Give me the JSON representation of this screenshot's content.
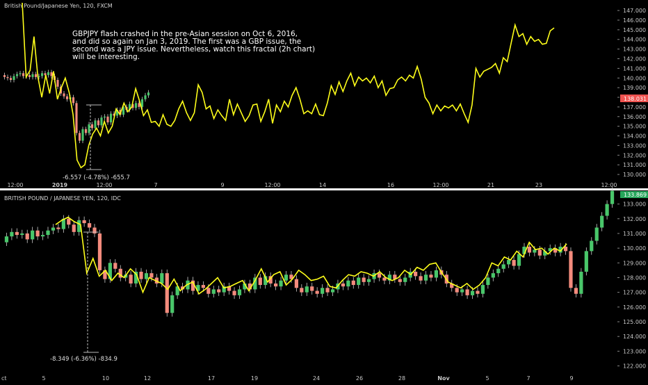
{
  "colors": {
    "background": "#000000",
    "yellow_line": "#ffff1a",
    "candle_up": "#49c66a",
    "candle_down": "#f48b7d",
    "wick": "#cfcfcf",
    "axis_text": "#c8c8c8",
    "price_badge": "#ef5350",
    "price_badge_green": "#26a65b",
    "divider": "#ffffff"
  },
  "chart_data": [
    {
      "type": "line",
      "title": "British Pound/Japanese Yen, 120, FXCM",
      "annotation": [
        "GBPJPY flash crashed in the pre-Asian session on Oct 6, 2016,",
        "and did so again on Jan 3, 2019. The first was a GBP issue, the",
        "second was a JPY issue. Nevertheless, watch this fractal (2h chart)",
        "will be interesting."
      ],
      "measurement_label": "-6.557 (-4.78%) -655.7",
      "price_badge": "138.031",
      "y_ticks": [
        "147.000",
        "146.000",
        "145.000",
        "144.000",
        "143.000",
        "142.000",
        "141.000",
        "140.000",
        "139.000",
        "138.000",
        "137.000",
        "136.000",
        "135.000",
        "134.000",
        "133.000",
        "132.000",
        "131.000",
        "130.000"
      ],
      "x_ticks": [
        "12:00",
        "2019",
        "12:00",
        "7",
        "9",
        "12:00",
        "14",
        "16",
        "12:00",
        "21",
        "23",
        "12:00"
      ],
      "ylim": [
        129.5,
        147.8
      ],
      "series": [
        {
          "type": "line",
          "color": "#ffff1a",
          "values": [
            148.5,
            140.1,
            140.8,
            144.3,
            140.1,
            138.0,
            140.3,
            138.4,
            140.7,
            137.8,
            139.0,
            140.0,
            138.5,
            136.2,
            131.5,
            130.7,
            131.0,
            133.0,
            134.2,
            134.8,
            134.0,
            135.5,
            134.3,
            135.0,
            136.8,
            136.2,
            137.4,
            136.5,
            137.0,
            138.9,
            137.6,
            136.1,
            136.7,
            135.4,
            135.5,
            135.0,
            136.2,
            135.2,
            135.0,
            135.6,
            136.8,
            137.6,
            136.4,
            135.6,
            136.4,
            139.3,
            138.5,
            136.8,
            137.1,
            135.8,
            136.7,
            136.1,
            135.6,
            137.8,
            136.2,
            137.3,
            136.4,
            135.5,
            136.1,
            137.2,
            137.3,
            135.5,
            136.5,
            137.8,
            135.3,
            137.2,
            136.5,
            137.6,
            137.0,
            138.2,
            139.0,
            137.8,
            136.3,
            136.6,
            136.3,
            137.3,
            136.2,
            136.1,
            137.4,
            139.2,
            138.3,
            139.6,
            138.6,
            139.7,
            140.5,
            139.2,
            140.1,
            139.7,
            140.0,
            139.5,
            140.2,
            139.0,
            139.7,
            138.2,
            138.9,
            139.0,
            139.8,
            140.1,
            139.7,
            140.3,
            140.0,
            141.2,
            139.9,
            138.0,
            137.4,
            136.3,
            137.2,
            136.6,
            137.1,
            136.9,
            137.2,
            136.6,
            137.3,
            136.3,
            135.4,
            137.2,
            141.0,
            140.1,
            140.7,
            140.9,
            141.1,
            141.5,
            140.5,
            142.1,
            141.7,
            143.6,
            145.5,
            144.3,
            144.6,
            143.5,
            144.3,
            143.8,
            144.0,
            143.5,
            143.6,
            144.9,
            145.2
          ]
        },
        {
          "type": "candlestick",
          "values": [
            140.3,
            140.1,
            140.0,
            139.8,
            140.2,
            140.4,
            140.5,
            140.2,
            140.3,
            140.1,
            140.4,
            140.1,
            140.2,
            140.5,
            140.3,
            140.6,
            140.2,
            139.8,
            139.1,
            138.4,
            138.1,
            137.8,
            138.0,
            137.4,
            134.3,
            133.5,
            134.7,
            134.3,
            135.2,
            134.8,
            135.6,
            135.1,
            135.9,
            136.0,
            135.4,
            136.3,
            136.1,
            136.7,
            136.2,
            137.0,
            136.7,
            137.3,
            136.9,
            137.4,
            137.0,
            137.8,
            138.2,
            138.5
          ]
        }
      ]
    },
    {
      "type": "line",
      "title": "BRITISH POUND / JAPANESE YEN, 120, IDC",
      "measurement_label": "-8.349 (-6.36%) -834.9",
      "price_badge": "133.869",
      "y_ticks": [
        "133.000",
        "132.000",
        "131.000",
        "130.000",
        "129.000",
        "128.000",
        "127.000",
        "126.000",
        "125.000",
        "124.000",
        "123.000",
        "122.000"
      ],
      "x_ticks": [
        "ct",
        "5",
        "10",
        "12",
        "17",
        "19",
        "24",
        "26",
        "28",
        "Nov",
        "5",
        "7",
        "9"
      ],
      "ylim": [
        121.6,
        133.5
      ],
      "series": [
        {
          "type": "line",
          "color": "#ffff1a",
          "values": [
            131.6,
            131.9,
            132.1,
            131.8,
            131.6,
            128.3,
            129.3,
            128.1,
            128.5,
            127.8,
            128.3,
            128.0,
            128.6,
            128.2,
            127.0,
            128.0,
            127.8,
            127.6,
            127.2,
            127.9,
            127.1,
            127.5,
            127.7,
            126.9,
            127.2,
            127.6,
            128.0,
            127.3,
            127.4,
            127.6,
            127.8,
            127.1,
            127.8,
            128.6,
            127.7,
            128.2,
            128.4,
            127.5,
            127.9,
            128.5,
            128.2,
            127.8,
            127.9,
            128.1,
            127.4,
            127.3,
            127.8,
            128.2,
            128.1,
            128.4,
            128.3,
            128.1,
            128.4,
            128.0,
            127.8,
            128.0,
            128.5,
            128.2,
            128.7,
            128.5,
            128.9,
            129.0,
            128.3,
            127.7,
            127.5,
            127.3,
            127.6,
            127.2,
            127.5,
            128.0,
            129.0,
            128.8,
            129.4,
            129.2,
            129.8,
            129.4,
            130.4,
            129.9,
            130.0,
            129.6,
            130.0,
            129.8,
            130.3
          ]
        },
        {
          "type": "candlestick",
          "values": [
            130.4,
            130.8,
            131.1,
            130.9,
            131.0,
            130.6,
            131.2,
            130.8,
            130.9,
            131.2,
            131.4,
            131.3,
            132.0,
            131.6,
            131.1,
            131.9,
            131.7,
            131.4,
            131.0,
            128.5,
            127.9,
            129.0,
            128.6,
            128.0,
            128.2,
            127.6,
            128.4,
            127.9,
            128.3,
            128.0,
            127.6,
            128.3,
            125.6,
            126.8,
            127.4,
            127.2,
            127.8,
            127.1,
            127.5,
            127.3,
            126.9,
            127.2,
            127.0,
            127.4,
            127.1,
            126.8,
            127.2,
            127.6,
            127.2,
            128.0,
            127.5,
            128.1,
            127.6,
            127.4,
            127.8,
            128.2,
            127.9,
            127.3,
            127.0,
            127.4,
            127.1,
            126.9,
            127.3,
            127.0,
            127.2,
            127.6,
            127.4,
            127.8,
            127.5,
            128.0,
            127.7,
            127.9,
            128.3,
            128.0,
            127.8,
            128.2,
            127.9,
            127.7,
            128.0,
            128.4,
            128.1,
            127.8,
            128.2,
            128.0,
            128.5,
            128.2,
            127.6,
            127.3,
            127.0,
            127.2,
            126.8,
            127.1,
            126.9,
            127.5,
            128.0,
            128.3,
            128.6,
            128.9,
            129.2,
            128.8,
            129.6,
            130.1,
            129.7,
            129.9,
            129.5,
            129.8,
            130.0,
            129.7,
            130.1,
            129.8,
            127.3,
            126.9,
            128.4,
            129.8,
            130.5,
            131.4,
            132.2,
            133.0,
            133.9
          ]
        }
      ]
    }
  ]
}
